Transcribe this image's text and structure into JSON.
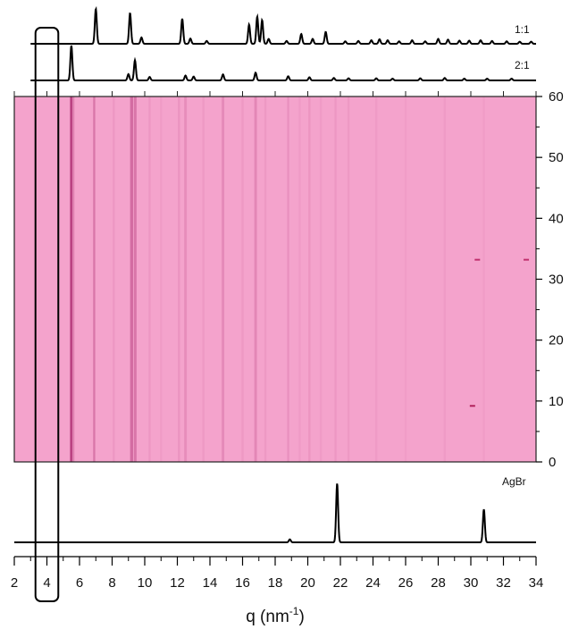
{
  "chart_data": [
    {
      "type": "line",
      "panel": "reference-patterns-top",
      "series": [
        {
          "name": "1:1",
          "peaks": [
            {
              "q": 7.0,
              "h": 1.0
            },
            {
              "q": 9.1,
              "h": 0.88
            },
            {
              "q": 9.8,
              "h": 0.18
            },
            {
              "q": 12.3,
              "h": 0.72
            },
            {
              "q": 12.8,
              "h": 0.15
            },
            {
              "q": 13.8,
              "h": 0.08
            },
            {
              "q": 16.4,
              "h": 0.55
            },
            {
              "q": 16.9,
              "h": 0.78
            },
            {
              "q": 17.2,
              "h": 0.68
            },
            {
              "q": 17.6,
              "h": 0.14
            },
            {
              "q": 18.7,
              "h": 0.08
            },
            {
              "q": 19.6,
              "h": 0.28
            },
            {
              "q": 20.3,
              "h": 0.14
            },
            {
              "q": 21.1,
              "h": 0.34
            },
            {
              "q": 22.3,
              "h": 0.07
            },
            {
              "q": 23.1,
              "h": 0.08
            },
            {
              "q": 23.9,
              "h": 0.1
            },
            {
              "q": 24.4,
              "h": 0.13
            },
            {
              "q": 24.9,
              "h": 0.1
            },
            {
              "q": 25.6,
              "h": 0.07
            },
            {
              "q": 26.4,
              "h": 0.1
            },
            {
              "q": 27.2,
              "h": 0.07
            },
            {
              "q": 28.0,
              "h": 0.14
            },
            {
              "q": 28.6,
              "h": 0.12
            },
            {
              "q": 29.3,
              "h": 0.09
            },
            {
              "q": 29.9,
              "h": 0.09
            },
            {
              "q": 30.6,
              "h": 0.1
            },
            {
              "q": 31.3,
              "h": 0.08
            },
            {
              "q": 32.2,
              "h": 0.07
            },
            {
              "q": 33.0,
              "h": 0.06
            },
            {
              "q": 33.7,
              "h": 0.06
            }
          ]
        },
        {
          "name": "2:1",
          "peaks": [
            {
              "q": 5.5,
              "h": 1.0
            },
            {
              "q": 9.0,
              "h": 0.18
            },
            {
              "q": 9.4,
              "h": 0.58
            },
            {
              "q": 10.3,
              "h": 0.1
            },
            {
              "q": 12.5,
              "h": 0.14
            },
            {
              "q": 13.0,
              "h": 0.11
            },
            {
              "q": 14.8,
              "h": 0.17
            },
            {
              "q": 16.8,
              "h": 0.22
            },
            {
              "q": 18.8,
              "h": 0.12
            },
            {
              "q": 20.1,
              "h": 0.09
            },
            {
              "q": 21.6,
              "h": 0.07
            },
            {
              "q": 22.5,
              "h": 0.06
            },
            {
              "q": 24.2,
              "h": 0.06
            },
            {
              "q": 25.2,
              "h": 0.05
            },
            {
              "q": 26.9,
              "h": 0.06
            },
            {
              "q": 28.4,
              "h": 0.07
            },
            {
              "q": 29.6,
              "h": 0.05
            },
            {
              "q": 31.0,
              "h": 0.05
            },
            {
              "q": 32.5,
              "h": 0.05
            }
          ]
        }
      ]
    },
    {
      "type": "heatmap",
      "panel": "time-resolved-map",
      "xlim": [
        2,
        34
      ],
      "ylim": [
        0,
        60
      ],
      "yticks": [
        0,
        10,
        20,
        30,
        40,
        50,
        60
      ],
      "color_background": "#f4a3cc",
      "color_dark": "#b83f7f",
      "lines": [
        {
          "q": 5.5,
          "intensity": 1.0,
          "width": 0.1
        },
        {
          "q": 5.62,
          "intensity": 0.35,
          "width": 0.08
        },
        {
          "q": 6.9,
          "intensity": 0.45,
          "width": 0.08
        },
        {
          "q": 8.1,
          "intensity": 0.12,
          "width": 0.08
        },
        {
          "q": 9.2,
          "intensity": 0.55,
          "width": 0.12
        },
        {
          "q": 9.42,
          "intensity": 0.45,
          "width": 0.1
        },
        {
          "q": 10.3,
          "intensity": 0.12,
          "width": 0.08
        },
        {
          "q": 11.0,
          "intensity": 0.08,
          "width": 0.08
        },
        {
          "q": 12.1,
          "intensity": 0.15,
          "width": 0.08
        },
        {
          "q": 12.5,
          "intensity": 0.22,
          "width": 0.1
        },
        {
          "q": 13.6,
          "intensity": 0.1,
          "width": 0.08
        },
        {
          "q": 14.8,
          "intensity": 0.25,
          "width": 0.1
        },
        {
          "q": 16.0,
          "intensity": 0.1,
          "width": 0.08
        },
        {
          "q": 16.8,
          "intensity": 0.28,
          "width": 0.1
        },
        {
          "q": 17.4,
          "intensity": 0.1,
          "width": 0.08
        },
        {
          "q": 18.8,
          "intensity": 0.18,
          "width": 0.08
        },
        {
          "q": 19.5,
          "intensity": 0.08,
          "width": 0.08
        },
        {
          "q": 20.1,
          "intensity": 0.14,
          "width": 0.08
        },
        {
          "q": 20.8,
          "intensity": 0.08,
          "width": 0.08
        },
        {
          "q": 21.7,
          "intensity": 0.12,
          "width": 0.08
        },
        {
          "q": 22.5,
          "intensity": 0.1,
          "width": 0.08
        },
        {
          "q": 24.2,
          "intensity": 0.08,
          "width": 0.08
        },
        {
          "q": 26.0,
          "intensity": 0.06,
          "width": 0.08
        },
        {
          "q": 28.4,
          "intensity": 0.08,
          "width": 0.08
        },
        {
          "q": 30.8,
          "intensity": 0.07,
          "width": 0.08
        }
      ],
      "spots": [
        {
          "q": 30.4,
          "t": 33.2,
          "color": "#c0306e"
        },
        {
          "q": 33.4,
          "t": 33.2,
          "color": "#c0306e"
        },
        {
          "q": 30.1,
          "t": 9.2,
          "color": "#b0205a"
        }
      ]
    },
    {
      "type": "line",
      "panel": "reference-pattern-bottom",
      "xlabel": "q (nm",
      "xlabel_sup": "-1",
      "xlabel_end": ")",
      "xlim": [
        2,
        34
      ],
      "xticks": [
        2,
        4,
        6,
        8,
        10,
        12,
        14,
        16,
        18,
        20,
        22,
        24,
        26,
        28,
        30,
        32,
        34
      ],
      "series": [
        {
          "name": "AgBr",
          "peaks": [
            {
              "q": 18.9,
              "h": 0.05
            },
            {
              "q": 21.8,
              "h": 1.0
            },
            {
              "q": 30.8,
              "h": 0.56
            }
          ]
        }
      ]
    }
  ],
  "highlight": {
    "q_from": 3.3,
    "q_to": 4.7
  }
}
